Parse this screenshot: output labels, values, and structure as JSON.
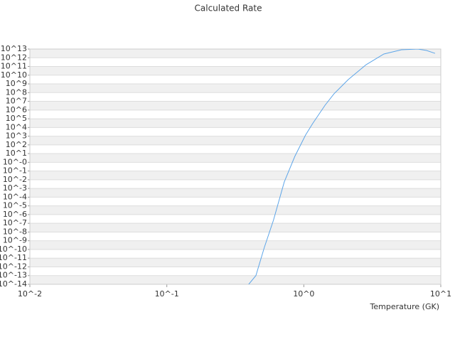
{
  "chart_data": {
    "type": "line",
    "title": "Calculated Rate",
    "x_label": "Temperature (GK)",
    "xlog": true,
    "ylog": true,
    "grid": true,
    "xlim": [
      0.01,
      10
    ],
    "ylim": [
      1e-14,
      10000000000000.0
    ],
    "xticks": [
      {
        "value": 0.01,
        "label": "10^-2"
      },
      {
        "value": 0.1,
        "label": "10^-1"
      },
      {
        "value": 1,
        "label": "10^0"
      },
      {
        "value": 10,
        "label": "10^1"
      }
    ],
    "yticks": [
      {
        "value": 1e-14,
        "label": "10^-14"
      },
      {
        "value": 1e-13,
        "label": "10^-13"
      },
      {
        "value": 1e-12,
        "label": "10^-12"
      },
      {
        "value": 1e-11,
        "label": "10^-11"
      },
      {
        "value": 1e-10,
        "label": "10^-10"
      },
      {
        "value": 1e-09,
        "label": "10^-9"
      },
      {
        "value": 1e-08,
        "label": "10^-8"
      },
      {
        "value": 1e-07,
        "label": "10^-7"
      },
      {
        "value": 1e-06,
        "label": "10^-6"
      },
      {
        "value": 1e-05,
        "label": "10^-5"
      },
      {
        "value": 0.0001,
        "label": "10^-4"
      },
      {
        "value": 0.001,
        "label": "10^-3"
      },
      {
        "value": 0.01,
        "label": "10^-2"
      },
      {
        "value": 0.1,
        "label": "10^-1"
      },
      {
        "value": 1,
        "label": "10^-0"
      },
      {
        "value": 10,
        "label": "10^1"
      },
      {
        "value": 100,
        "label": "10^2"
      },
      {
        "value": 1000,
        "label": "10^3"
      },
      {
        "value": 10000.0,
        "label": "10^4"
      },
      {
        "value": 100000.0,
        "label": "10^5"
      },
      {
        "value": 1000000.0,
        "label": "10^6"
      },
      {
        "value": 10000000.0,
        "label": "10^7"
      },
      {
        "value": 100000000.0,
        "label": "10^8"
      },
      {
        "value": 1000000000.0,
        "label": "10^9"
      },
      {
        "value": 10000000000.0,
        "label": "10^10"
      },
      {
        "value": 100000000000.0,
        "label": "10^11"
      },
      {
        "value": 1000000000000.0,
        "label": "10^12"
      },
      {
        "value": 10000000000000.0,
        "label": "10^13"
      }
    ],
    "series": [
      {
        "color": "#5da5e8",
        "x": [
          0.396,
          0.447,
          0.515,
          0.6,
          0.72,
          0.86,
          1.03,
          1.16,
          1.43,
          1.66,
          2.11,
          2.85,
          3.84,
          5.17,
          6.8,
          7.87,
          9.08
        ],
        "values": [
          1e-14,
          1e-13,
          1.7e-10,
          2.2e-07,
          0.0056,
          4.8,
          1350,
          28000,
          3600000,
          72000000,
          3100000000,
          160000000000,
          2700000000000,
          8300000000000,
          10000000000000,
          6900000000000,
          3200000000000
        ]
      }
    ]
  }
}
